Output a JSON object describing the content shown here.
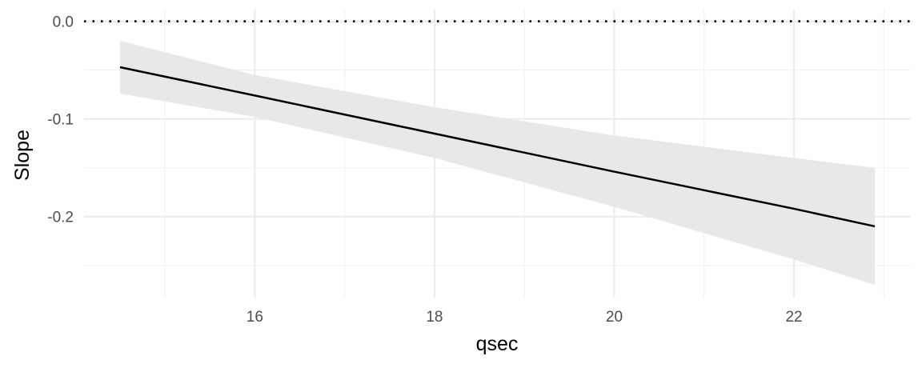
{
  "chart_data": {
    "type": "line",
    "xlabel": "qsec",
    "ylabel": "Slope",
    "xlim": [
      14.1,
      23.3
    ],
    "ylim": [
      -0.283,
      0.012
    ],
    "x_major_ticks": [
      16,
      18,
      20,
      22
    ],
    "x_minor_ticks": [
      15,
      17,
      19,
      21,
      23
    ],
    "y_major_ticks": [
      0.0,
      -0.1,
      -0.2
    ],
    "y_minor_ticks": [
      -0.05,
      -0.15,
      -0.25
    ],
    "x_tick_labels": [
      "16",
      "18",
      "20",
      "22"
    ],
    "y_tick_labels": [
      "0.0",
      "-0.1",
      "-0.2"
    ],
    "grid": true,
    "reference_line": {
      "y": 0.0,
      "style": "dotted",
      "color": "#000000"
    },
    "series": [
      {
        "x": [
          14.5,
          16,
          18,
          20,
          22,
          22.9
        ],
        "y": [
          -0.047,
          -0.076,
          -0.115,
          -0.154,
          -0.192,
          -0.21
        ],
        "ci_lower": [
          -0.074,
          -0.098,
          -0.14,
          -0.19,
          -0.244,
          -0.27
        ],
        "ci_upper": [
          -0.02,
          -0.055,
          -0.088,
          -0.117,
          -0.14,
          -0.15
        ],
        "color": "#000000",
        "band_color": "#e8e8e8"
      }
    ]
  }
}
